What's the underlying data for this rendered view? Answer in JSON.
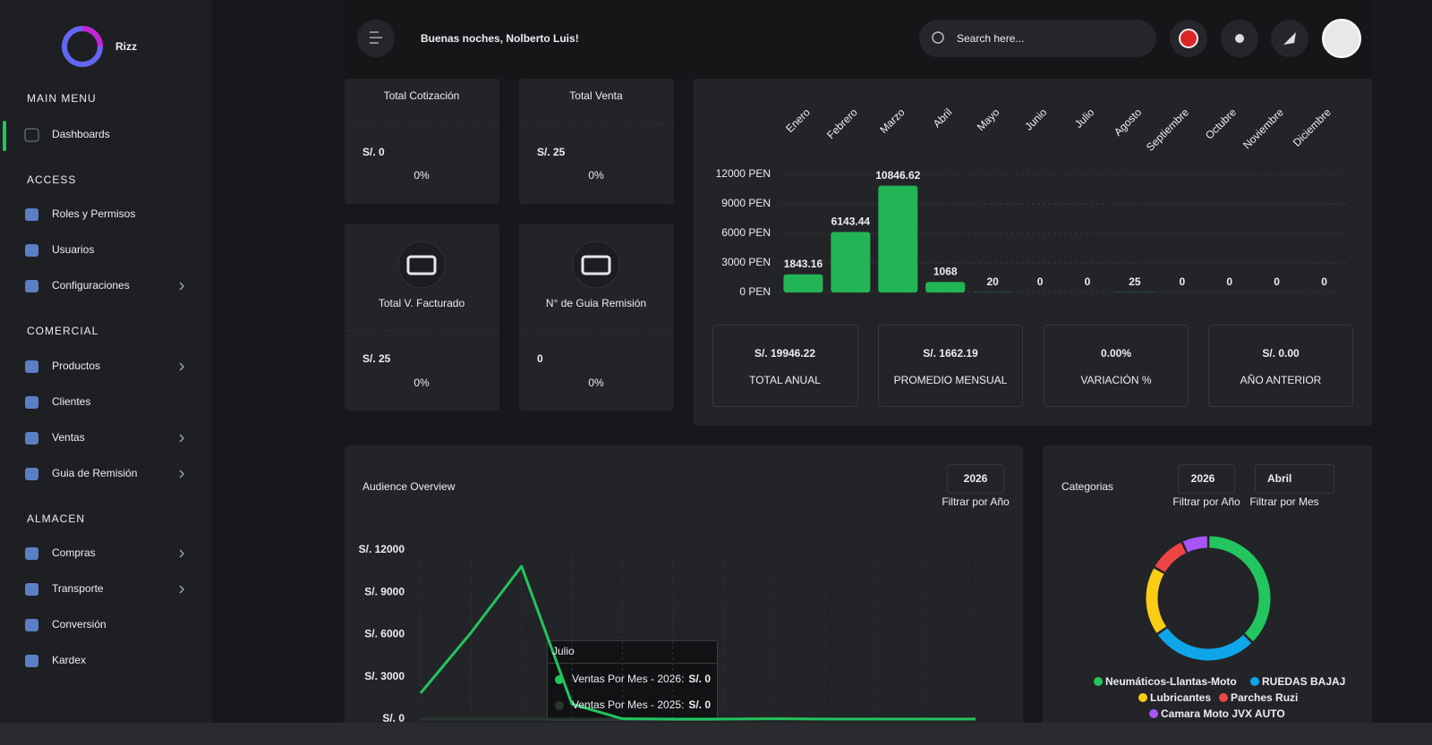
{
  "sidebar": {
    "brand": "Rizz",
    "sections": [
      {
        "title": "MAIN MENU",
        "items": [
          "Dashboards"
        ]
      },
      {
        "title": "ACCESS",
        "items": [
          "Roles y Permisos",
          "Usuarios",
          "Configuraciones"
        ]
      },
      {
        "title": "COMERCIAL",
        "items": [
          "Productos",
          "Clientes",
          "Ventas",
          "Guia de Remisión"
        ]
      },
      {
        "title": "ALMACEN",
        "items": [
          "Compras",
          "Transporte",
          "Conversión",
          "Kardex"
        ]
      }
    ]
  },
  "header": {
    "greeting": "Buenas noches, Nolberto Luis!",
    "search_placeholder": "Search here..."
  },
  "cards": [
    {
      "title": "Total Cotización",
      "value": "S/. 0",
      "change": "0%"
    },
    {
      "title": "Total Venta",
      "value": "S/. 25",
      "change": "0%"
    },
    {
      "title": "Total V. Facturado",
      "value": "S/. 25",
      "change": "0%"
    },
    {
      "title": "N° de Guia Remisión",
      "value": "0",
      "change": "0%"
    }
  ],
  "summary": [
    {
      "value": "S/. 19946.22",
      "label": "TOTAL ANUAL"
    },
    {
      "value": "S/. 1662.19",
      "label": "PROMEDIO MENSUAL"
    },
    {
      "value": "0.00%",
      "label": "VARIACIÓN %"
    },
    {
      "value": "S/. 0.00",
      "label": "AÑO ANTERIOR"
    }
  ],
  "audience": {
    "title": "Audience Overview",
    "year": "2026",
    "year_caption": "Filtrar por Año",
    "tooltip": {
      "title": "Julio",
      "rows": [
        {
          "label": "Ventas Por Mes - 2026:",
          "value": "S/. 0"
        },
        {
          "label": "Ventas Por Mes - 2025:",
          "value": "S/. 0"
        }
      ]
    }
  },
  "categorias": {
    "title": "Categorias",
    "year": "2026",
    "year_caption": "Filtrar por Año",
    "month": "Abril",
    "month_caption": "Filtrar por Mes"
  },
  "chart_data": [
    {
      "type": "bar",
      "categories": [
        "Enero",
        "Febrero",
        "Marzo",
        "Abril",
        "Mayo",
        "Junio",
        "Julio",
        "Agosto",
        "Septiembre",
        "Octubre",
        "Noviembre",
        "Diciembre"
      ],
      "values": [
        1843.16,
        6143.44,
        10846.62,
        1068,
        20,
        0,
        0,
        25,
        0,
        0,
        0,
        0
      ],
      "color": "#22b455",
      "ylim": [
        0,
        12000
      ],
      "yticks": [
        {
          "value": 0,
          "label": "0 PEN"
        },
        {
          "value": 3000,
          "label": "3000 PEN"
        },
        {
          "value": 6000,
          "label": "6000 PEN"
        },
        {
          "value": 9000,
          "label": "9000 PEN"
        },
        {
          "value": 12000,
          "label": "12000 PEN"
        }
      ],
      "grid": true
    },
    {
      "type": "line",
      "series": [
        {
          "color": "#2a3530",
          "values": [
            0,
            0,
            0,
            0,
            0,
            0,
            0,
            0,
            0,
            0,
            0,
            0
          ]
        },
        {
          "color": "#22c55e",
          "values": [
            1843.16,
            6143.44,
            10846.62,
            1068,
            20,
            0,
            0,
            25,
            0,
            0,
            0,
            0
          ]
        }
      ],
      "ylim": [
        0,
        12000
      ],
      "yticks": [
        {
          "value": 0,
          "label": "S/. 0"
        },
        {
          "value": 3000,
          "label": "S/. 3000"
        },
        {
          "value": 6000,
          "label": "S/. 6000"
        },
        {
          "value": 9000,
          "label": "S/. 9000"
        },
        {
          "value": 12000,
          "label": "S/. 12000"
        }
      ],
      "grid": true
    },
    {
      "type": "donut",
      "categories": [
        "Neumáticos-Llantas-Moto",
        "RUEDAS BAJAJ",
        "Lubricantes",
        "Parches Ruzi",
        "Camara Moto JVX AUTO"
      ],
      "values": [
        135,
        100,
        65,
        35,
        25
      ],
      "colors": [
        "#22c55e",
        "#0ea5e9",
        "#facc15",
        "#ef4444",
        "#a855f7"
      ]
    }
  ]
}
